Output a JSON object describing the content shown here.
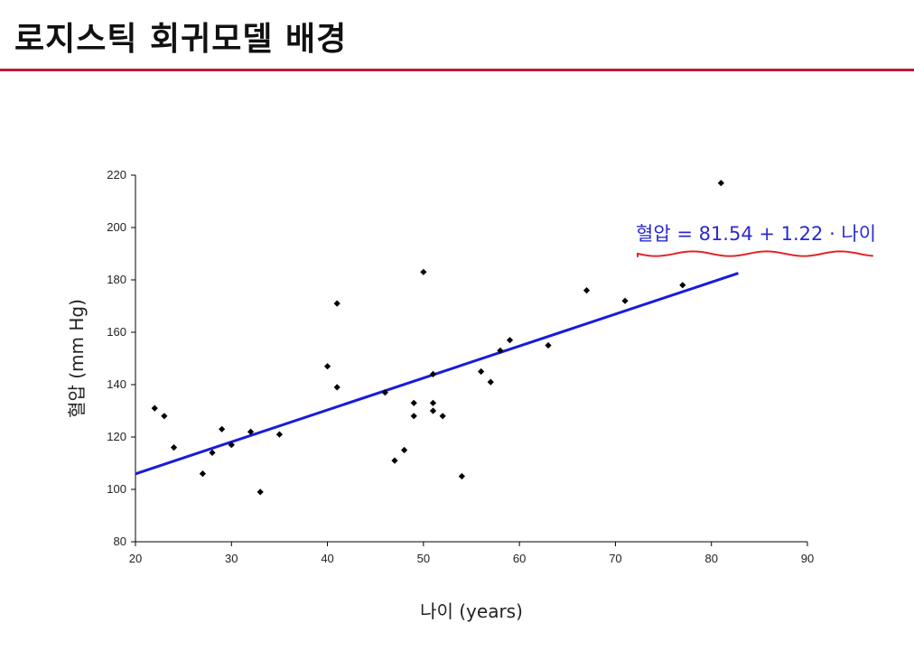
{
  "slide": {
    "title": "로지스틱 회귀모델 배경"
  },
  "colors": {
    "title_rule": "#c0183c",
    "regression_line": "#1a1adc",
    "equation_text": "#2a2ad0",
    "equation_underline": "#e0262a",
    "points": "#000000"
  },
  "chart_data": {
    "type": "scatter",
    "xlabel": "나이 (years)",
    "ylabel": "혈압 (mm Hg)",
    "xlim": [
      20,
      90
    ],
    "ylim": [
      80,
      220
    ],
    "xticks": [
      20,
      30,
      40,
      50,
      60,
      70,
      80,
      90
    ],
    "yticks": [
      80,
      100,
      120,
      140,
      160,
      180,
      200,
      220
    ],
    "grid": false,
    "series": [
      {
        "points": [
          [
            22,
            131
          ],
          [
            23,
            128
          ],
          [
            24,
            116
          ],
          [
            27,
            106
          ],
          [
            28,
            114
          ],
          [
            29,
            123
          ],
          [
            30,
            117
          ],
          [
            32,
            122
          ],
          [
            33,
            99
          ],
          [
            35,
            121
          ],
          [
            40,
            147
          ],
          [
            41,
            171
          ],
          [
            41,
            139
          ],
          [
            46,
            137
          ],
          [
            47,
            111
          ],
          [
            48,
            115
          ],
          [
            49,
            133
          ],
          [
            49,
            128
          ],
          [
            50,
            183
          ],
          [
            51,
            133
          ],
          [
            51,
            130
          ],
          [
            51,
            144
          ],
          [
            52,
            128
          ],
          [
            54,
            105
          ],
          [
            56,
            145
          ],
          [
            57,
            141
          ],
          [
            58,
            153
          ],
          [
            59,
            157
          ],
          [
            63,
            155
          ],
          [
            67,
            176
          ],
          [
            71,
            172
          ],
          [
            77,
            178
          ],
          [
            81,
            217
          ]
        ]
      }
    ],
    "regression": {
      "intercept": 81.54,
      "slope": 1.22,
      "x_range": [
        20,
        82.8
      ],
      "equation_label": "혈압 = 81.54 + 1.22 · 나이"
    }
  }
}
